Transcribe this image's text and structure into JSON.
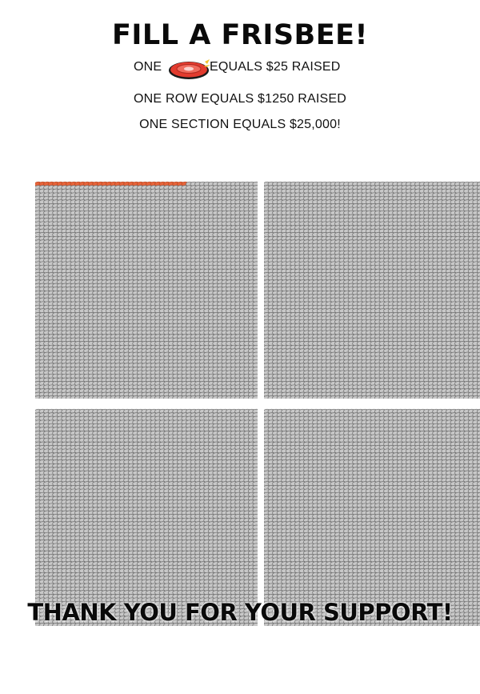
{
  "title": "FILL A FRISBEE!",
  "legend": {
    "one_label": "ONE",
    "icon": "frisbee-icon",
    "equals_label": "EQUALS $25 RAISED",
    "row_text": "ONE ROW EQUALS $1250 RAISED",
    "section_text": "ONE SECTION EQUALS $25,000!"
  },
  "colors": {
    "filled": "#e8643a",
    "empty": "#9a9a9a",
    "frisbee_red": "#e23b2e",
    "frisbee_gold": "#f2c230"
  },
  "progress": {
    "frisbees_per_row": 50,
    "rows_per_section": 20,
    "sections": [
      {
        "filled_frisbees": 34
      },
      {
        "filled_frisbees": 0
      },
      {
        "filled_frisbees": 0
      },
      {
        "filled_frisbees": 0
      }
    ]
  },
  "footer": "THANK YOU FOR YOUR SUPPORT!"
}
